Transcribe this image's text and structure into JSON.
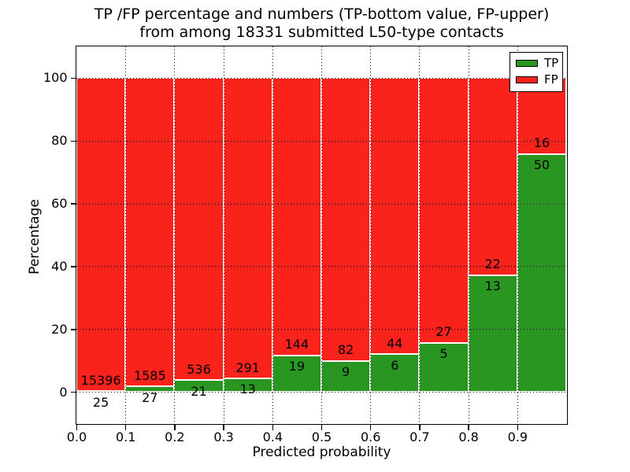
{
  "figure": {
    "title_line1": "TP /FP percentage and numbers (TP-bottom value, FP-upper)",
    "title_line2": "from among 18331 submitted L50-type contacts"
  },
  "chart_data": {
    "type": "bar",
    "subtype": "stacked-percentage-histogram",
    "title": "TP /FP percentage and numbers (TP-bottom value, FP-upper) from among 18331 submitted L50-type contacts",
    "xlabel": "Predicted probability",
    "ylabel": "Percentage",
    "total_contacts": 18331,
    "xlim": [
      0.0,
      1.0
    ],
    "ylim": [
      -10,
      110
    ],
    "x_tick_labels": [
      "0.0",
      "0.1",
      "0.2",
      "0.3",
      "0.4",
      "0.5",
      "0.6",
      "0.7",
      "0.8",
      "0.9"
    ],
    "x_tick_values": [
      0.0,
      0.1,
      0.2,
      0.3,
      0.4,
      0.5,
      0.6,
      0.7,
      0.8,
      0.9
    ],
    "y_tick_labels": [
      "0",
      "20",
      "40",
      "60",
      "80",
      "100"
    ],
    "y_tick_values": [
      0,
      20,
      40,
      60,
      80,
      100
    ],
    "bin_width": 0.1,
    "bin_starts": [
      0.0,
      0.1,
      0.2,
      0.3,
      0.4,
      0.5,
      0.6,
      0.7,
      0.8,
      0.9
    ],
    "grid": "dotted",
    "series": [
      {
        "name": "TP",
        "color": "#2a9622",
        "values": [
          25,
          27,
          21,
          13,
          19,
          9,
          6,
          5,
          13,
          50
        ]
      },
      {
        "name": "FP",
        "color": "#fa231b",
        "values": [
          15396,
          1585,
          536,
          291,
          144,
          82,
          44,
          27,
          22,
          16
        ]
      }
    ],
    "tp_percent_of_bin": [
      0.16,
      1.67,
      3.77,
      4.28,
      11.66,
      9.89,
      12.0,
      15.63,
      37.14,
      75.76
    ],
    "bar_edge_color": "#ffffff",
    "legend": {
      "position": "upper right",
      "entries": [
        "TP",
        "FP"
      ]
    }
  }
}
